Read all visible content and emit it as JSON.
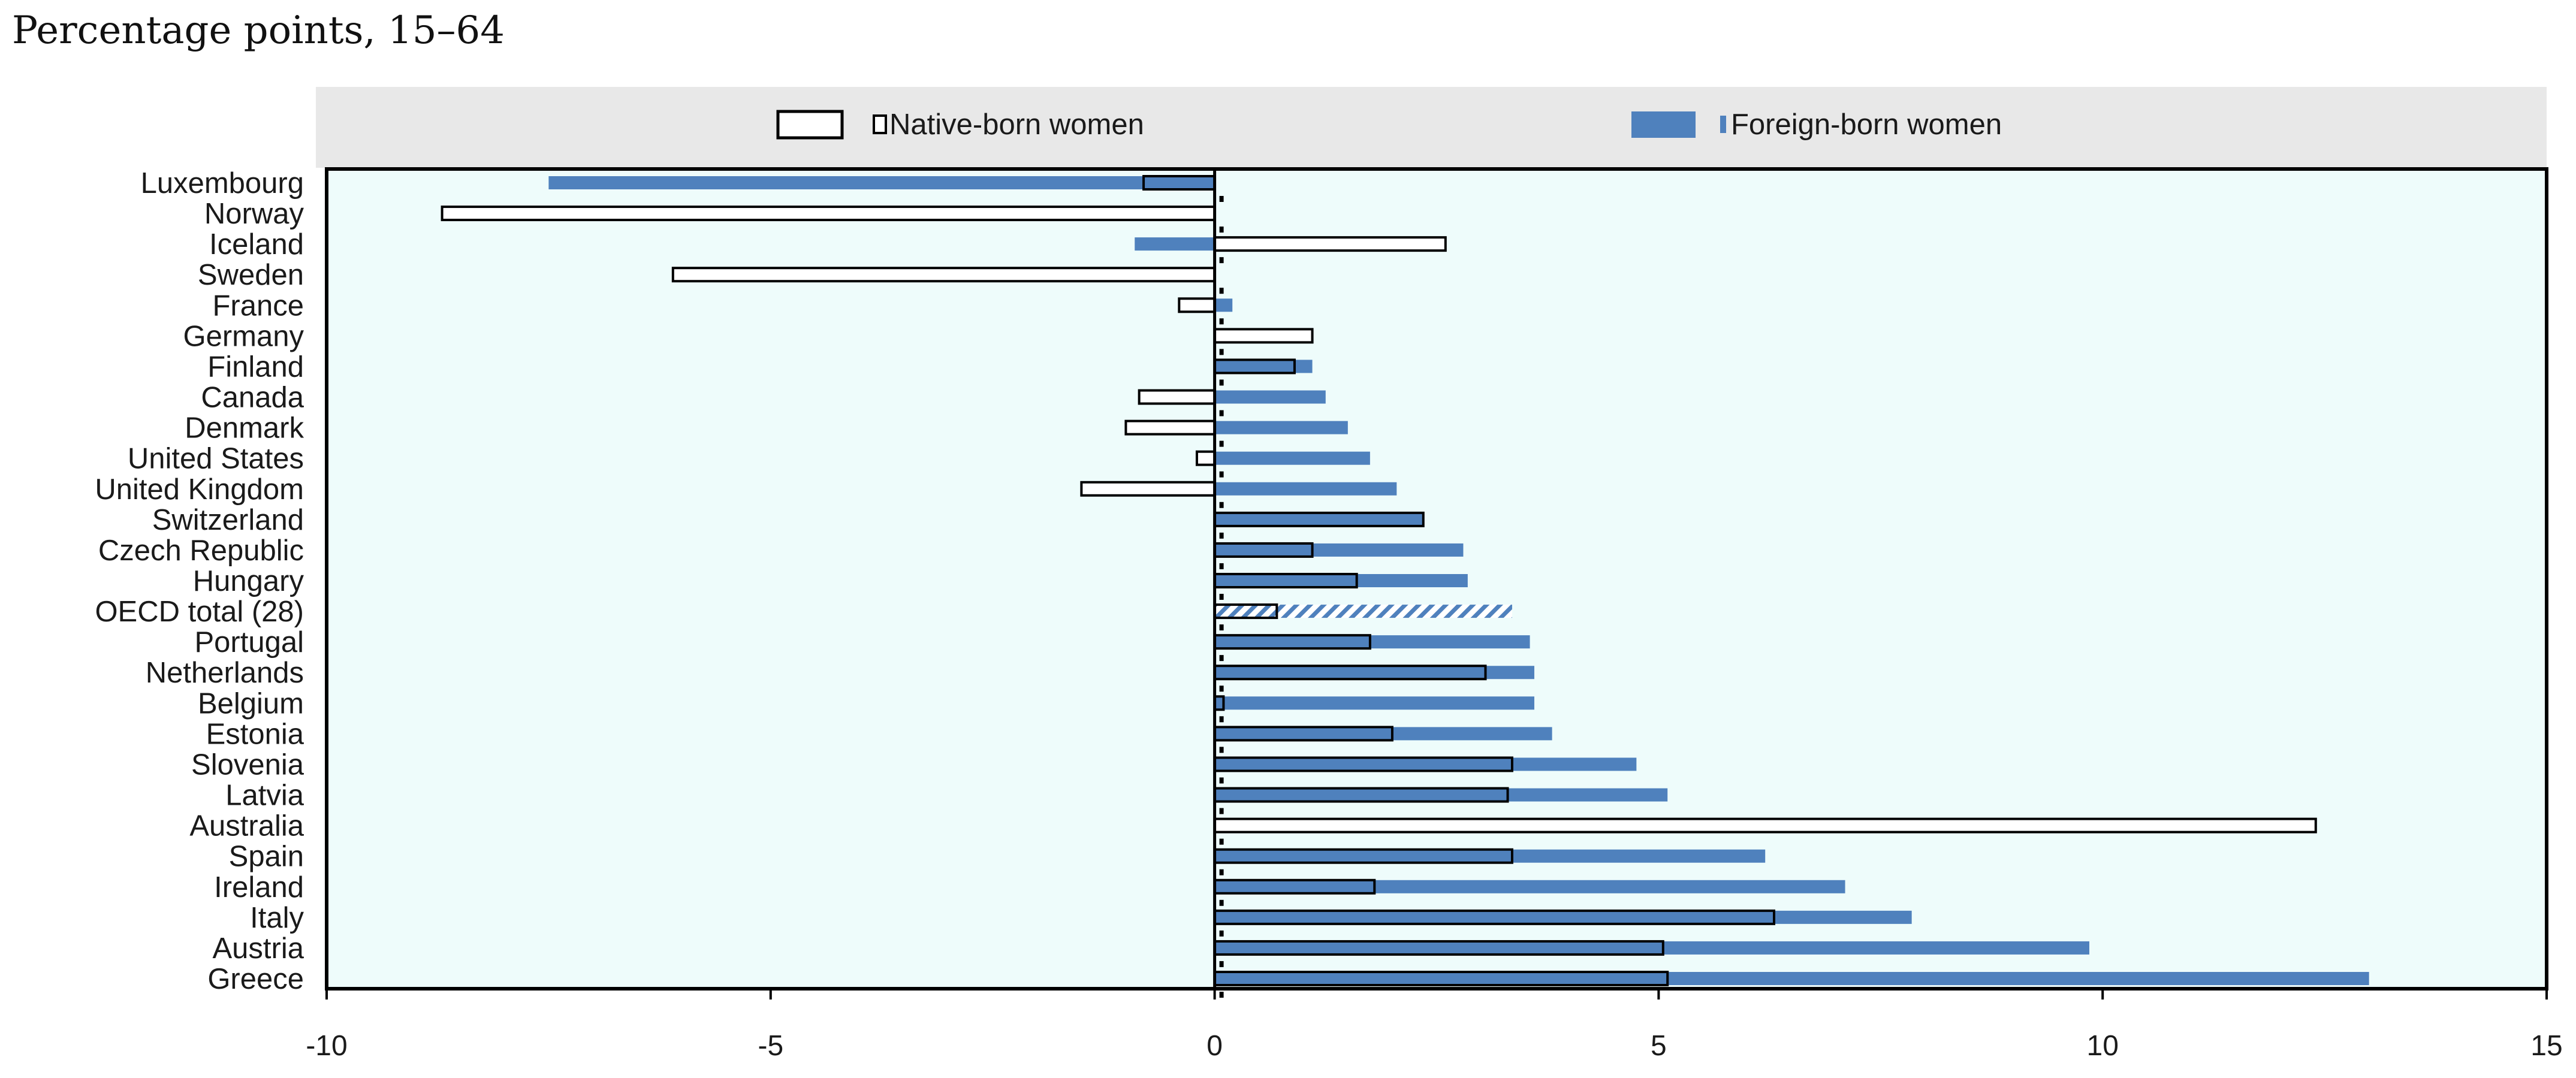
{
  "chart_data": {
    "type": "bar",
    "orientation": "horizontal",
    "title": "Percentage points, 15–64",
    "xlabel": "",
    "ylabel": "",
    "xlim": [
      -10,
      15
    ],
    "xticks": [
      -10,
      -5,
      0,
      5,
      10,
      15
    ],
    "grid": false,
    "legend_position": "top",
    "categories": [
      "Luxembourg",
      "Norway",
      "Iceland",
      "Sweden",
      "France",
      "Germany",
      "Finland",
      "Canada",
      "Denmark",
      "United States",
      "United Kingdom",
      "Switzerland",
      "Czech Republic",
      "Hungary",
      "OECD total (28)",
      "Portugal",
      "Netherlands",
      "Belgium",
      "Estonia",
      "Slovenia",
      "Latvia",
      "Australia",
      "Spain",
      "Ireland",
      "Italy",
      "Austria",
      "Greece"
    ],
    "highlight_category": "OECD total (28)",
    "series": [
      {
        "name": "Native-born women",
        "color": "#ffffff",
        "edge_color": "#000000",
        "values": [
          -0.8,
          -8.7,
          2.6,
          -6.1,
          -0.4,
          1.1,
          0.9,
          -0.85,
          -1.0,
          -0.2,
          -1.5,
          2.35,
          1.1,
          1.6,
          0.7,
          1.75,
          3.05,
          0.1,
          2.0,
          3.35,
          3.3,
          12.4,
          3.35,
          1.8,
          6.3,
          5.05,
          5.1
        ]
      },
      {
        "name": "Foreign-born women",
        "color": "#4f81bd",
        "edge_color": "#4f81bd",
        "values": [
          -7.5,
          -6.6,
          -0.9,
          -0.1,
          0.2,
          0.65,
          1.1,
          1.25,
          1.5,
          1.75,
          2.05,
          2.35,
          2.8,
          2.85,
          3.35,
          3.55,
          3.6,
          3.6,
          3.8,
          4.75,
          5.1,
          5.2,
          6.2,
          7.1,
          7.85,
          9.85,
          13.0
        ]
      }
    ]
  },
  "background": {
    "plot_fill": "#eefcfb",
    "legend_band_fill": "#e8e8e8"
  }
}
